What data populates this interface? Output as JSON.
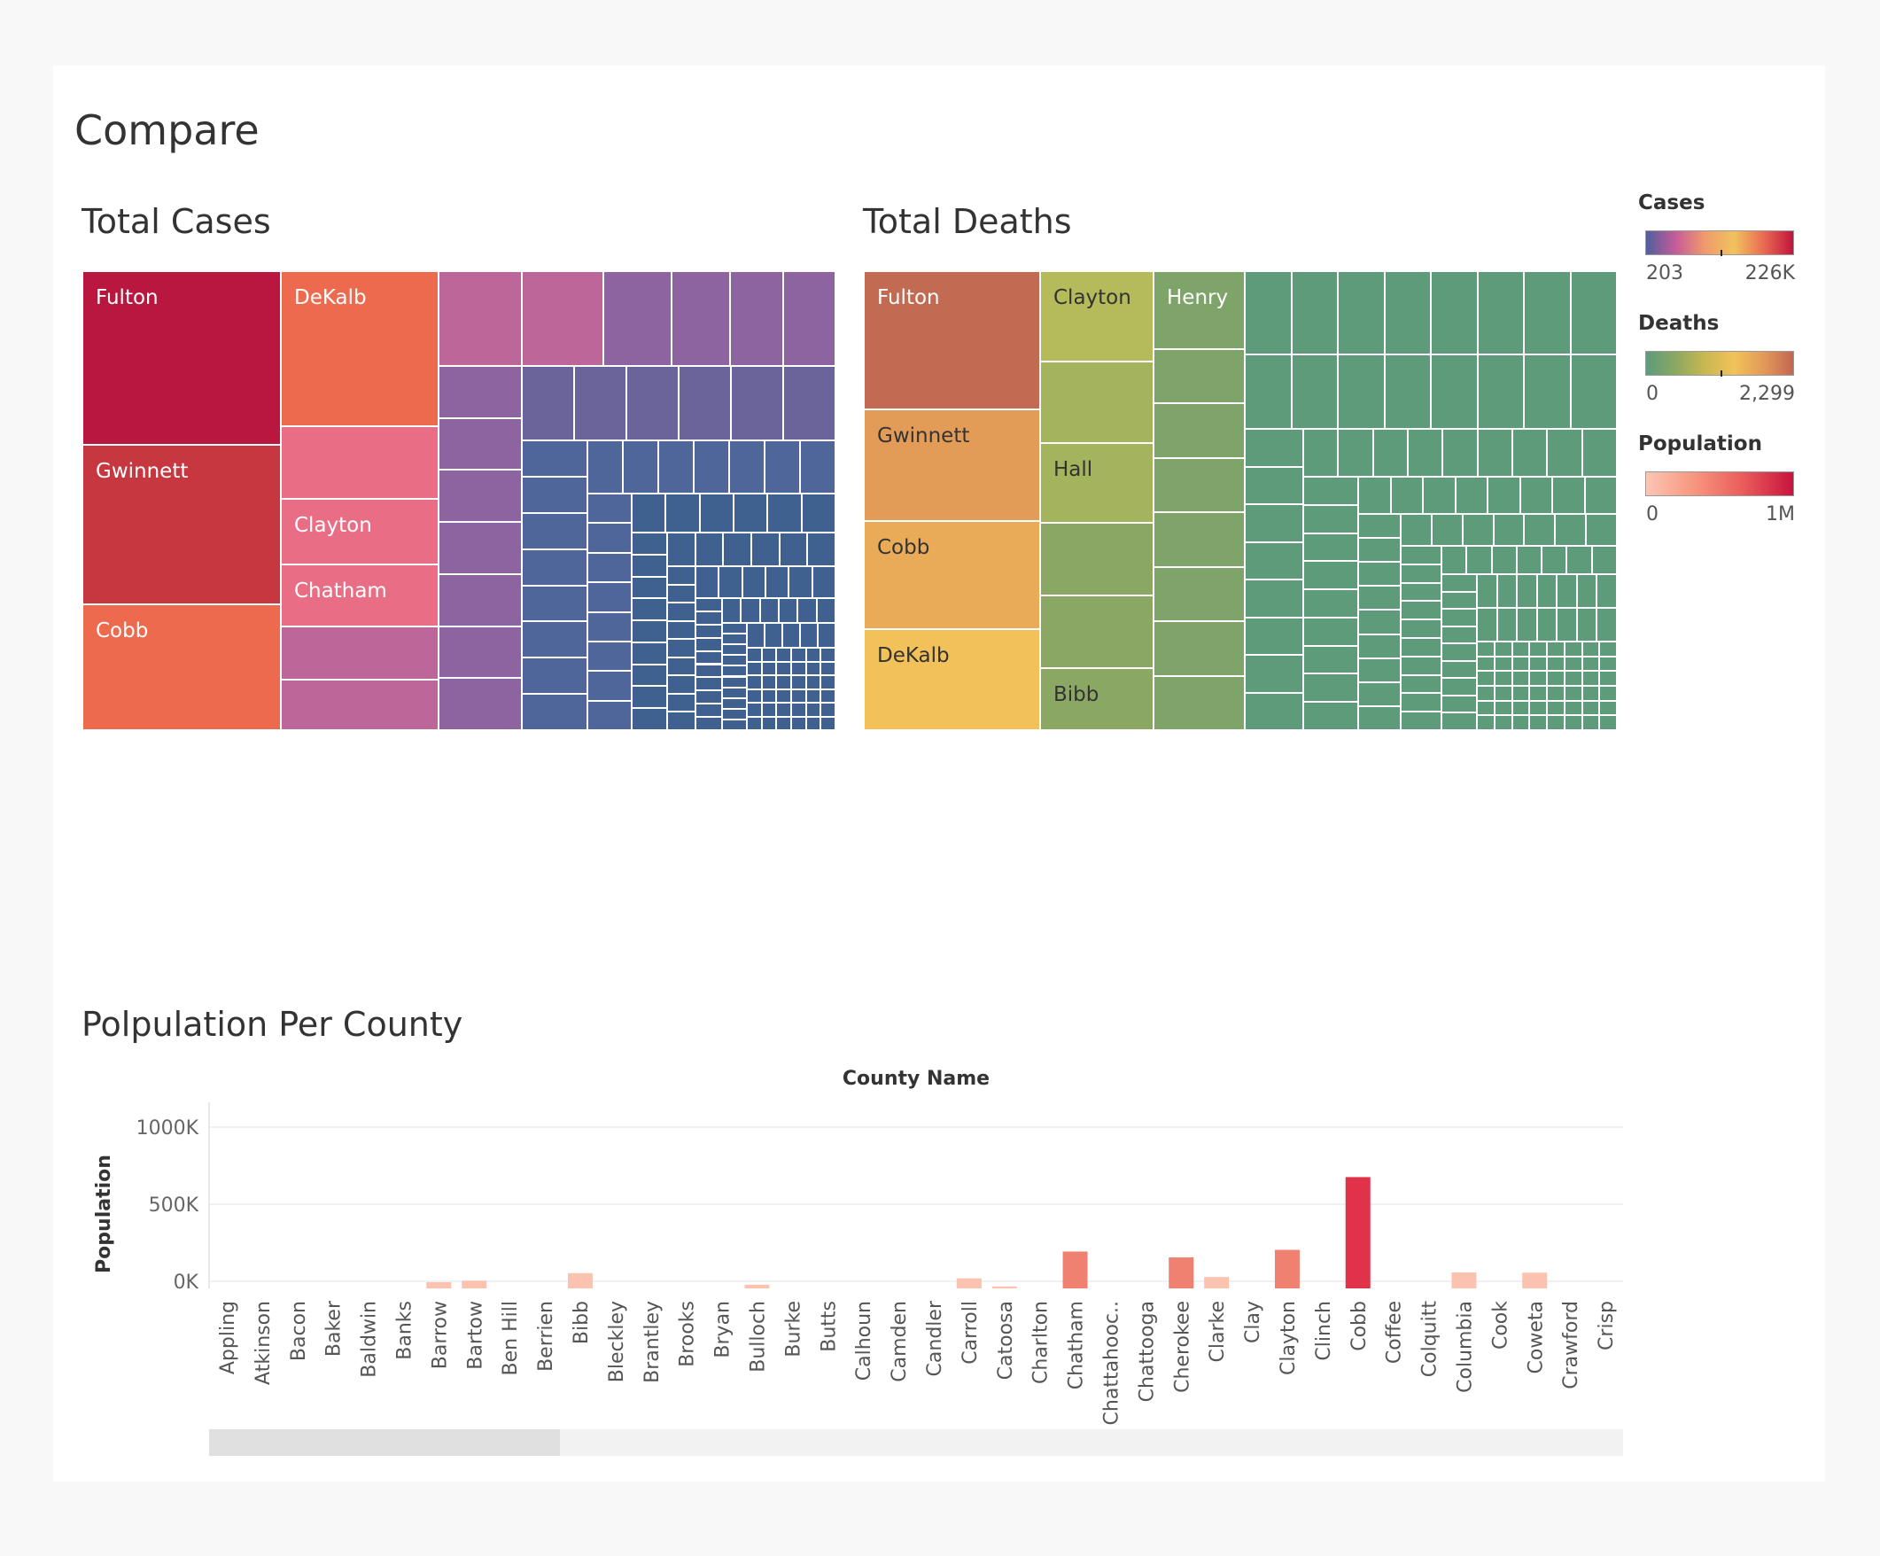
{
  "page": {
    "title": "Compare",
    "cases_title": "Total Cases",
    "deaths_title": "Total Deaths",
    "population_title": "Polpulation Per County"
  },
  "legends": {
    "cases": {
      "title": "Cases",
      "min": "203",
      "max": "226K",
      "colors": [
        "#4f5f9c",
        "#c65b9a",
        "#f19a6b",
        "#f0c35e",
        "#ea6a52",
        "#c0143c"
      ]
    },
    "deaths": {
      "title": "Deaths",
      "min": "0",
      "max": "2,299",
      "colors": [
        "#5d9b7c",
        "#8aa860",
        "#c9b753",
        "#f2c25a",
        "#e29a5a",
        "#c36652"
      ]
    },
    "population": {
      "title": "Population",
      "min": "0",
      "max": "1M",
      "colors": [
        "#fcc6b3",
        "#f7957e",
        "#ea5a5a",
        "#c8143e"
      ]
    }
  },
  "treemap_cases": {
    "labels": [
      "Fulton",
      "DeKalb",
      "Gwinnett",
      "Clayton",
      "Chatham",
      "Cobb"
    ],
    "label_color": "#ffffff",
    "colors": {
      "top": "#b9173f",
      "second": "#c6373f",
      "third": "#ee6a4e",
      "fourth": "#e96d84",
      "fifth": "#bd669a",
      "sixth": "#8d63a0",
      "seventh": "#6a649b",
      "eighth": "#4f669a",
      "ninth": "#3f6190"
    }
  },
  "treemap_deaths": {
    "labels": [
      "Fulton",
      "Clayton",
      "Henry",
      "Gwinnett",
      "Hall",
      "Cobb",
      "DeKalb",
      "Bibb"
    ],
    "label_color_light": "#ffffff",
    "label_color_dark": "#333333",
    "colors": {
      "fulton": "#c26a52",
      "gwinnett": "#e29c58",
      "cobb": "#e9ab58",
      "dekalb": "#f2c15a",
      "clayton": "#b5bb5a",
      "hall": "#a4b45c",
      "bibb": "#8aa864",
      "henry": "#7fa46a",
      "rest": "#5e9b7b"
    }
  },
  "chart_data": {
    "type": "bar",
    "title": "Polpulation Per County",
    "xlabel": "County Name",
    "ylabel": "Population",
    "y_ticks": [
      "1000K",
      "500K",
      "0K"
    ],
    "ylim": [
      -100000,
      1000000
    ],
    "grid": true,
    "categories": [
      "Appling",
      "Atkinson",
      "Bacon",
      "Baker",
      "Baldwin",
      "Banks",
      "Barrow",
      "Bartow",
      "Ben Hill",
      "Berrien",
      "Bibb",
      "Bleckley",
      "Brantley",
      "Brooks",
      "Bryan",
      "Bulloch",
      "Burke",
      "Butts",
      "Calhoun",
      "Camden",
      "Candler",
      "Carroll",
      "Catoosa",
      "Charlton",
      "Chatham",
      "Chattahooc..",
      "Chattooga",
      "Cherokee",
      "Clarke",
      "Clay",
      "Clayton",
      "Clinch",
      "Cobb",
      "Coffee",
      "Colquitt",
      "Columbia",
      "Cook",
      "Coweta",
      "Crawford",
      "Crisp"
    ],
    "values": [
      -82000,
      -89000,
      -89000,
      -97000,
      -56000,
      -81000,
      -6000,
      4000,
      -79000,
      -78000,
      53000,
      -88000,
      -80000,
      -84000,
      -60000,
      -22000,
      -77000,
      -76000,
      -92000,
      -54000,
      -89000,
      19000,
      -33000,
      -87000,
      193000,
      -89000,
      -75000,
      155000,
      28000,
      -97000,
      204000,
      -89000,
      676000,
      -56000,
      -54000,
      57000,
      -81000,
      56000,
      -89000,
      -80000
    ],
    "bar_colors": {
      "low": "#fcc2b0",
      "high": "#f08070",
      "max": "#e0334a"
    }
  }
}
